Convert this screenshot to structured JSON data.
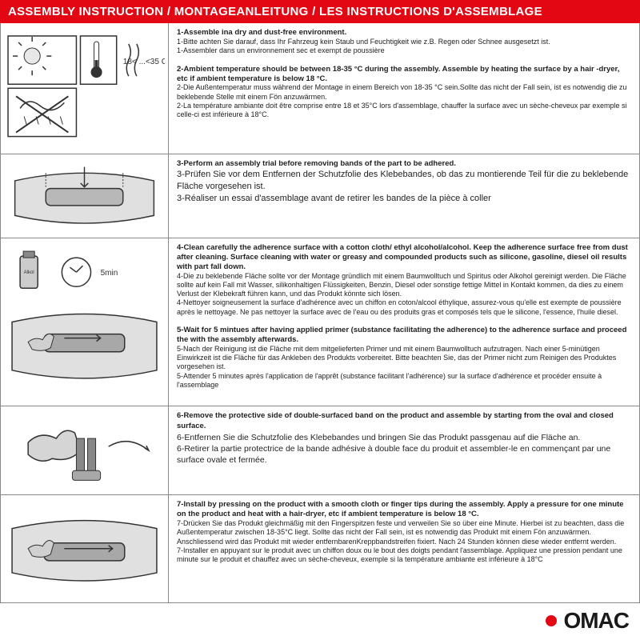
{
  "header": {
    "title": "ASSEMBLY INSTRUCTION / MONTAGEANLEITUNG / LES INSTRUCTIONS D'ASSEMBLAGE"
  },
  "colors": {
    "header_bg": "#e30613",
    "header_text": "#ffffff",
    "border": "#888888",
    "body_text": "#222222",
    "brand_dot": "#e30613"
  },
  "rows": [
    {
      "items": [
        {
          "bold": true,
          "text": "1-Assemble ina dry and dust-free environment."
        },
        {
          "bold": false,
          "text": "1-Bitte achten Sie darauf, dass Ihr Fahrzeug kein Staub und Feuchtigkeit wie z.B. Regen oder Schnee ausgesetzt ist."
        },
        {
          "bold": false,
          "text": "1-Assembler dans un environnement sec et exempt de poussière"
        },
        {
          "bold": false,
          "text": " "
        },
        {
          "bold": true,
          "text": "2-Ambient temperature should be between 18-35 °C  during the assembly. Assemble by heating the surface by a hair -dryer, etc if ambient temperature is below 18 °C."
        },
        {
          "bold": false,
          "text": "2-Die Außentemperatur muss während der Montage in einem Bereich von 18-35 °C  sein.Sollte das nicht der Fall sein, ist es notwendig die zu beklebende Stelle mit einem Fön anzuwärmen."
        },
        {
          "bold": false,
          "text": "2-La température ambiante doit être comprise entre 18 et 35°C lors d'assemblage, chauffer la surface avec un sèche-cheveux par exemple si celle-ci est inférieure à 18°C."
        }
      ]
    },
    {
      "items": [
        {
          "bold": true,
          "text": "3-Perform an assembly trial before removing bands of the part to be adhered."
        },
        {
          "bold": false,
          "text": "3-Prüfen Sie vor dem Entfernen der Schutzfolie des Klebebandes, ob das zu montierende Teil für die zu beklebende Fläche vorgesehen ist."
        },
        {
          "bold": false,
          "text": "3-Réaliser un essai d'assemblage avant de retirer les bandes de la pièce à coller"
        }
      ]
    },
    {
      "items": [
        {
          "bold": true,
          "text": "4-Clean carefully the adherence surface with a cotton cloth/ ethyl alcohol/alcohol. Keep the adherence surface free from dust after cleaning. Surface cleaning with water or greasy and compounded products such as silicone, gasoline, diesel oil results with part fall down."
        },
        {
          "bold": false,
          "text": "4-Die zu beklebende Fläche sollte vor der Montage gründlich mit einem Baumwolltuch und Spiritus oder Alkohol gereinigt werden. Die Fläche sollte auf kein Fall mit Wasser, silikonhaltigen Flüssigkeiten, Benzin, Diesel oder sonstige fettige Mittel in Kontakt kommen, da dies zu einem Verlust der Klebekraft führen kann, und das Produkt könnte sich lösen."
        },
        {
          "bold": false,
          "text": "4-Nettoyer soigneusement la surface d'adhérence avec un chiffon en coton/alcool éthylique, assurez-vous qu'elle est exempte de poussière après le nettoyage. Ne pas nettoyer la surface avec de l'eau ou des produits gras et composés tels que le silicone, l'essence, l'huile diesel."
        },
        {
          "bold": false,
          "text": " "
        },
        {
          "bold": true,
          "text": "5-Wait for 5 mintues after having applied primer (substance facilitating the adherence) to the adherence surface and proceed the with the assembly afterwards."
        },
        {
          "bold": false,
          "text": "5-Nach der Reinigung ist die Fläche mit dem mitgelieferten Primer und mit einem Baumwolltuch aufzutragen. Nach einer 5-minütigen Einwirkzeit ist die Fläche für das Ankleben des Produkts vorbereitet. Bitte beachten Sie, das der Primer nicht zum Reinigen des Produktes vorgesehen ist."
        },
        {
          "bold": false,
          "text": "5-Attender 5 minutes après l'application de l'apprêt (substance facilitant l'adhérence) sur la surface d'adhérence et procéder ensuite à l'assemblage"
        }
      ]
    },
    {
      "items": [
        {
          "bold": true,
          "text": "6-Remove the protective side of double-surfaced band on the product and assemble by starting from the oval and closed surface."
        },
        {
          "bold": false,
          "text": "6-Entfernen Sie die Schutzfolie des Klebebandes und bringen Sie das Produkt passgenau auf die Fläche an."
        },
        {
          "bold": false,
          "text": "6-Retirer la partie protectrice de la bande adhésive à double face du produit et assembler-le en commençant par une surface ovale et fermée."
        }
      ]
    },
    {
      "items": [
        {
          "bold": true,
          "text": "7-Install by pressing on the product with a smooth cloth or finger tips during the assembly. Apply a pressure for one minute on the product and heat with a hair-dryer, etc if ambient temperature is below 18 °C."
        },
        {
          "bold": false,
          "text": "7-Drücken Sie das Produkt gleichmäßig mit den Fingerspitzen feste und verweilen Sie so über eine Minute. Hierbei ist zu beachten, dass die Außentemperatur zwischen 18-35°C liegt. Sollte das nicht der Fall sein, ist es notwendig das Produkt mit einem Fön anzuwärmen. Anschliessend wird das Produkt mit wieder entfernbarenKreppbandstreifen fixiert. Nach 24 Stunden können diese wieder entfernt werden."
        },
        {
          "bold": false,
          "text": "7-Installer en appuyant sur le produit avec un chiffon doux ou le bout des doigts pendant l'assemblage. Appliquez une pression pendant une minute sur le produit et chauffez avec un sèche-cheveux, exemple si la température ambiante est inférieure à 18°C"
        }
      ]
    }
  ],
  "labels": {
    "temp_range": "18< ...<35 C",
    "wait_time": "5min",
    "alcohol": "Alkol"
  },
  "brand": {
    "name": "OMAC"
  }
}
